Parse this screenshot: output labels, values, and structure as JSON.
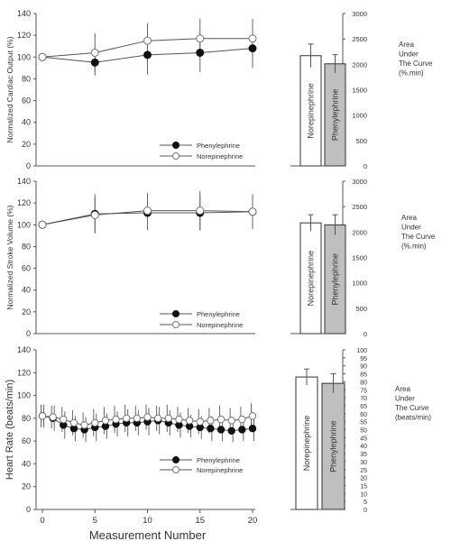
{
  "chart_data": [
    {
      "type": "line",
      "ylabel": "Normalized Cardiac Output (%)",
      "xlim": [
        0,
        20
      ],
      "ylim": [
        0,
        140
      ],
      "yticks": [
        0,
        20,
        40,
        60,
        80,
        100,
        120,
        140
      ],
      "xtick_labels": false,
      "legend_position": "lower-right",
      "series": [
        {
          "name": "Phenylephrine",
          "marker": "filled",
          "x": [
            0,
            5,
            10,
            15,
            20
          ],
          "y": [
            100,
            95,
            102,
            104,
            108
          ],
          "err": [
            0,
            12,
            18,
            18,
            18
          ]
        },
        {
          "name": "Norepinephrine",
          "marker": "open",
          "x": [
            0,
            5,
            10,
            15,
            20
          ],
          "y": [
            100,
            104,
            115,
            117,
            117
          ],
          "err": [
            0,
            18,
            16,
            18,
            18
          ]
        }
      ],
      "inset": {
        "type": "bar",
        "label": "Area\nUnder\nThe Curve\n(%.min)",
        "ylim": [
          0,
          3000
        ],
        "yticks": [
          0,
          500,
          1000,
          1500,
          2000,
          2500,
          3000
        ],
        "categories": [
          "Norepinephrine",
          "Phenylephrine"
        ],
        "values": [
          2170,
          2010
        ],
        "err": [
          230,
          180
        ],
        "colors": [
          "#ffffff",
          "#bfbfbf"
        ]
      }
    },
    {
      "type": "line",
      "ylabel": "Normalized Stroke Volume (%)",
      "xlim": [
        0,
        20
      ],
      "ylim": [
        0,
        140
      ],
      "yticks": [
        0,
        20,
        40,
        60,
        80,
        100,
        120,
        140
      ],
      "xtick_labels": false,
      "legend_position": "lower-right",
      "series": [
        {
          "name": "Phenylephrine",
          "marker": "filled",
          "x": [
            0,
            5,
            10,
            15,
            20
          ],
          "y": [
            100,
            110,
            111,
            111,
            112
          ],
          "err": [
            0,
            18,
            16,
            16,
            14
          ]
        },
        {
          "name": "Norepinephrine",
          "marker": "open",
          "x": [
            0,
            5,
            10,
            15,
            20
          ],
          "y": [
            100,
            109,
            113,
            113,
            112
          ],
          "err": [
            0,
            16,
            16,
            18,
            16
          ]
        }
      ],
      "inset": {
        "type": "bar",
        "label": "Area\nUnder\nThe Curve\n(%.min)",
        "ylim": [
          0,
          3000
        ],
        "yticks": [
          0,
          500,
          1000,
          1500,
          2000,
          2500,
          3000
        ],
        "categories": [
          "Norepinephrine",
          "Phenylephrine"
        ],
        "values": [
          2180,
          2140
        ],
        "err": [
          160,
          200
        ],
        "colors": [
          "#ffffff",
          "#bfbfbf"
        ]
      }
    },
    {
      "type": "line",
      "xlabel": "Measurement Number",
      "ylabel": "Heart Rate (beats/min)",
      "xlim": [
        0,
        20
      ],
      "ylim": [
        0,
        140
      ],
      "xticks": [
        0,
        5,
        10,
        15,
        20
      ],
      "yticks": [
        0,
        20,
        40,
        60,
        80,
        100,
        120,
        140
      ],
      "legend_position": "lower-right",
      "series": [
        {
          "name": "Phenylephrine",
          "marker": "filled",
          "x": [
            0,
            1,
            2,
            3,
            4,
            5,
            6,
            7,
            8,
            9,
            10,
            11,
            12,
            13,
            14,
            15,
            16,
            17,
            18,
            19,
            20
          ],
          "y": [
            82,
            80,
            74,
            71,
            70,
            72,
            73,
            75,
            76,
            76,
            77,
            78,
            76,
            74,
            73,
            72,
            71,
            70,
            69,
            70,
            71
          ],
          "err": [
            10,
            11,
            12,
            11,
            11,
            12,
            11,
            11,
            12,
            11,
            12,
            12,
            11,
            11,
            10,
            10,
            11,
            10,
            10,
            10,
            11
          ]
        },
        {
          "name": "Norepinephrine",
          "marker": "open",
          "x": [
            0,
            1,
            2,
            3,
            4,
            5,
            6,
            7,
            8,
            9,
            10,
            11,
            12,
            13,
            14,
            15,
            16,
            17,
            18,
            19,
            20
          ],
          "y": [
            82,
            81,
            79,
            76,
            74,
            76,
            78,
            79,
            80,
            80,
            81,
            80,
            80,
            79,
            78,
            77,
            78,
            79,
            78,
            79,
            82
          ],
          "err": [
            10,
            10,
            11,
            11,
            11,
            12,
            12,
            12,
            12,
            11,
            11,
            11,
            12,
            11,
            11,
            11,
            11,
            12,
            11,
            11,
            11
          ]
        }
      ],
      "inset": {
        "type": "bar",
        "label": "Area\nUnder\nThe Curve\n(beats/min)",
        "ylim": [
          0,
          100
        ],
        "yticks": [
          0,
          5,
          10,
          15,
          20,
          25,
          30,
          35,
          40,
          45,
          50,
          55,
          60,
          65,
          70,
          75,
          80,
          85,
          90,
          95,
          100
        ],
        "categories": [
          "Norepinephrine",
          "Phenylephrine"
        ],
        "values": [
          83,
          79
        ],
        "err": [
          5,
          6
        ],
        "colors": [
          "#ffffff",
          "#bfbfbf"
        ]
      }
    }
  ]
}
